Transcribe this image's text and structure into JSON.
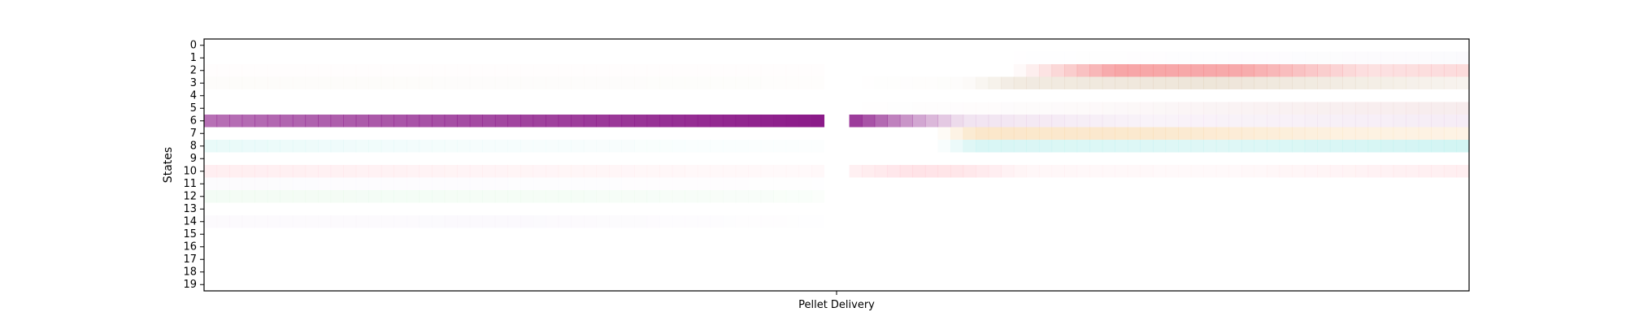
{
  "chart_data": {
    "type": "heatmap",
    "ylabel": "States",
    "xlabel": "",
    "x_ticks": [
      {
        "label": "Pellet Delivery",
        "position": 0.5
      }
    ],
    "y_categories": [
      "0",
      "1",
      "2",
      "3",
      "4",
      "5",
      "6",
      "7",
      "8",
      "9",
      "10",
      "11",
      "12",
      "13",
      "14",
      "15",
      "16",
      "17",
      "18",
      "19"
    ],
    "time_bins": 100,
    "gap_bins": [
      49,
      50
    ],
    "states": [
      {
        "state": "6",
        "color": "#8b1a89",
        "intensity": [
          [
            0,
            0.62
          ],
          [
            49,
            1.0
          ],
          [
            50,
            1.0
          ],
          [
            55,
            0.5
          ],
          [
            60,
            0.12
          ],
          [
            75,
            0.05
          ],
          [
            100,
            0.08
          ]
        ]
      },
      {
        "state": "2",
        "color": "#f4888a",
        "intensity": [
          [
            0,
            0.02
          ],
          [
            48,
            0.02
          ],
          [
            50,
            0.0
          ],
          [
            64,
            0.0
          ],
          [
            72,
            0.75
          ],
          [
            82,
            0.72
          ],
          [
            92,
            0.25
          ],
          [
            100,
            0.3
          ]
        ]
      },
      {
        "state": "3",
        "color": "#d9c6ab",
        "intensity": [
          [
            0,
            0.06
          ],
          [
            48,
            0.04
          ],
          [
            50,
            0.0
          ],
          [
            60,
            0.05
          ],
          [
            64,
            0.35
          ],
          [
            80,
            0.45
          ],
          [
            92,
            0.3
          ],
          [
            100,
            0.2
          ]
        ]
      },
      {
        "state": "7",
        "color": "#f8d7a8",
        "intensity": [
          [
            0,
            0.0
          ],
          [
            50,
            0.0
          ],
          [
            58,
            0.0
          ],
          [
            61,
            0.6
          ],
          [
            75,
            0.55
          ],
          [
            90,
            0.35
          ],
          [
            100,
            0.3
          ]
        ]
      },
      {
        "state": "8",
        "color": "#bff0ee",
        "intensity": [
          [
            0,
            0.35
          ],
          [
            20,
            0.15
          ],
          [
            48,
            0.05
          ],
          [
            50,
            0.0
          ],
          [
            58,
            0.0
          ],
          [
            61,
            0.6
          ],
          [
            80,
            0.5
          ],
          [
            100,
            0.7
          ]
        ]
      },
      {
        "state": "10",
        "color": "#ffc7cf",
        "intensity": [
          [
            0,
            0.3
          ],
          [
            20,
            0.2
          ],
          [
            48,
            0.1
          ],
          [
            50,
            0.2
          ],
          [
            56,
            0.5
          ],
          [
            60,
            0.45
          ],
          [
            65,
            0.15
          ],
          [
            80,
            0.1
          ],
          [
            100,
            0.3
          ]
        ]
      },
      {
        "state": "5",
        "color": "#e8c9cc",
        "intensity": [
          [
            0,
            0.0
          ],
          [
            50,
            0.0
          ],
          [
            70,
            0.1
          ],
          [
            90,
            0.3
          ],
          [
            100,
            0.35
          ]
        ]
      },
      {
        "state": "12",
        "color": "#d8f6dd",
        "intensity": [
          [
            0,
            0.3
          ],
          [
            30,
            0.25
          ],
          [
            48,
            0.15
          ],
          [
            50,
            0.0
          ],
          [
            100,
            0.0
          ]
        ]
      },
      {
        "state": "11",
        "color": "#ece6f4",
        "intensity": [
          [
            0,
            0.15
          ],
          [
            48,
            0.05
          ],
          [
            50,
            0.0
          ],
          [
            100,
            0.0
          ]
        ]
      },
      {
        "state": "14",
        "color": "#f0e8f6",
        "intensity": [
          [
            0,
            0.2
          ],
          [
            25,
            0.25
          ],
          [
            48,
            0.05
          ],
          [
            50,
            0.0
          ],
          [
            100,
            0.0
          ]
        ]
      },
      {
        "state": "1",
        "color": "#ece8f4",
        "intensity": [
          [
            0,
            0.0
          ],
          [
            60,
            0.0
          ],
          [
            80,
            0.1
          ],
          [
            100,
            0.2
          ]
        ]
      }
    ]
  }
}
